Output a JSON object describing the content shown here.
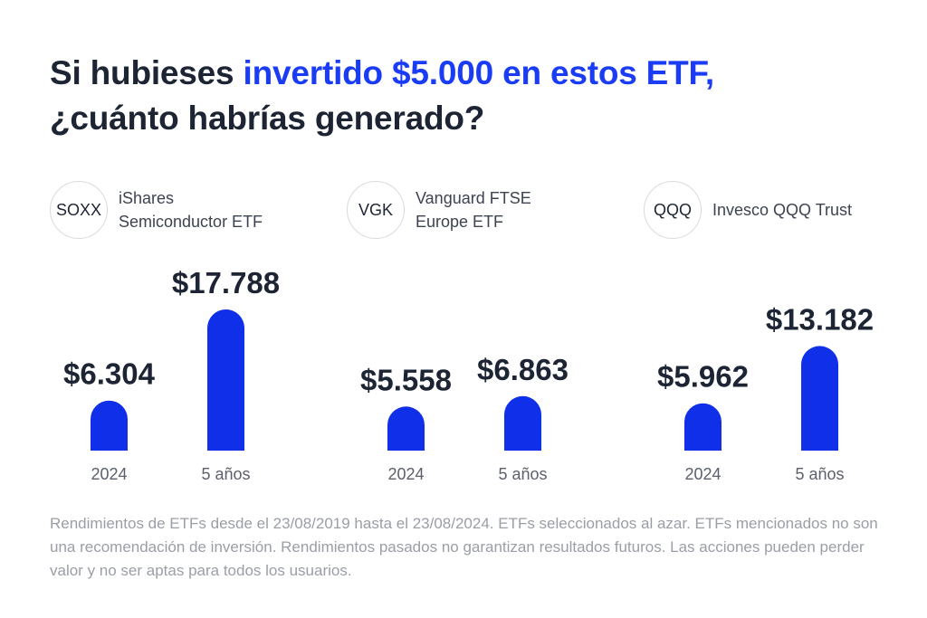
{
  "title": {
    "part1": "Si hubieses ",
    "highlight": "invertido $5.000 en estos ETF,",
    "part2": "¿cuánto habrías generado?"
  },
  "colors": {
    "bar": "#0f2fe8",
    "accent": "#1a3cf5",
    "text": "#1d2433"
  },
  "chart_data": {
    "type": "bar",
    "categories": [
      "2024",
      "5 años"
    ],
    "groups": [
      {
        "ticker": "SOXX",
        "name": "iShares\nSemiconductor ETF",
        "values": [
          6304,
          17788
        ],
        "labels": [
          "$6.304",
          "$17.788"
        ]
      },
      {
        "ticker": "VGK",
        "name": "Vanguard FTSE\nEurope ETF",
        "values": [
          5558,
          6863
        ],
        "labels": [
          "$5.558",
          "$6.863"
        ]
      },
      {
        "ticker": "QQQ",
        "name": "Invesco QQQ Trust",
        "values": [
          5962,
          13182
        ],
        "labels": [
          "$5.962",
          "$13.182"
        ]
      }
    ]
  },
  "footnote": "Rendimientos de ETFs desde el 23/08/2019 hasta el 23/08/2024. ETFs seleccionados al azar. ETFs mencionados no son una recomendación de inversión. Rendimientos pasados no garantizan resultados futuros. Las acciones pueden perder valor y no ser aptas para todos los usuarios."
}
